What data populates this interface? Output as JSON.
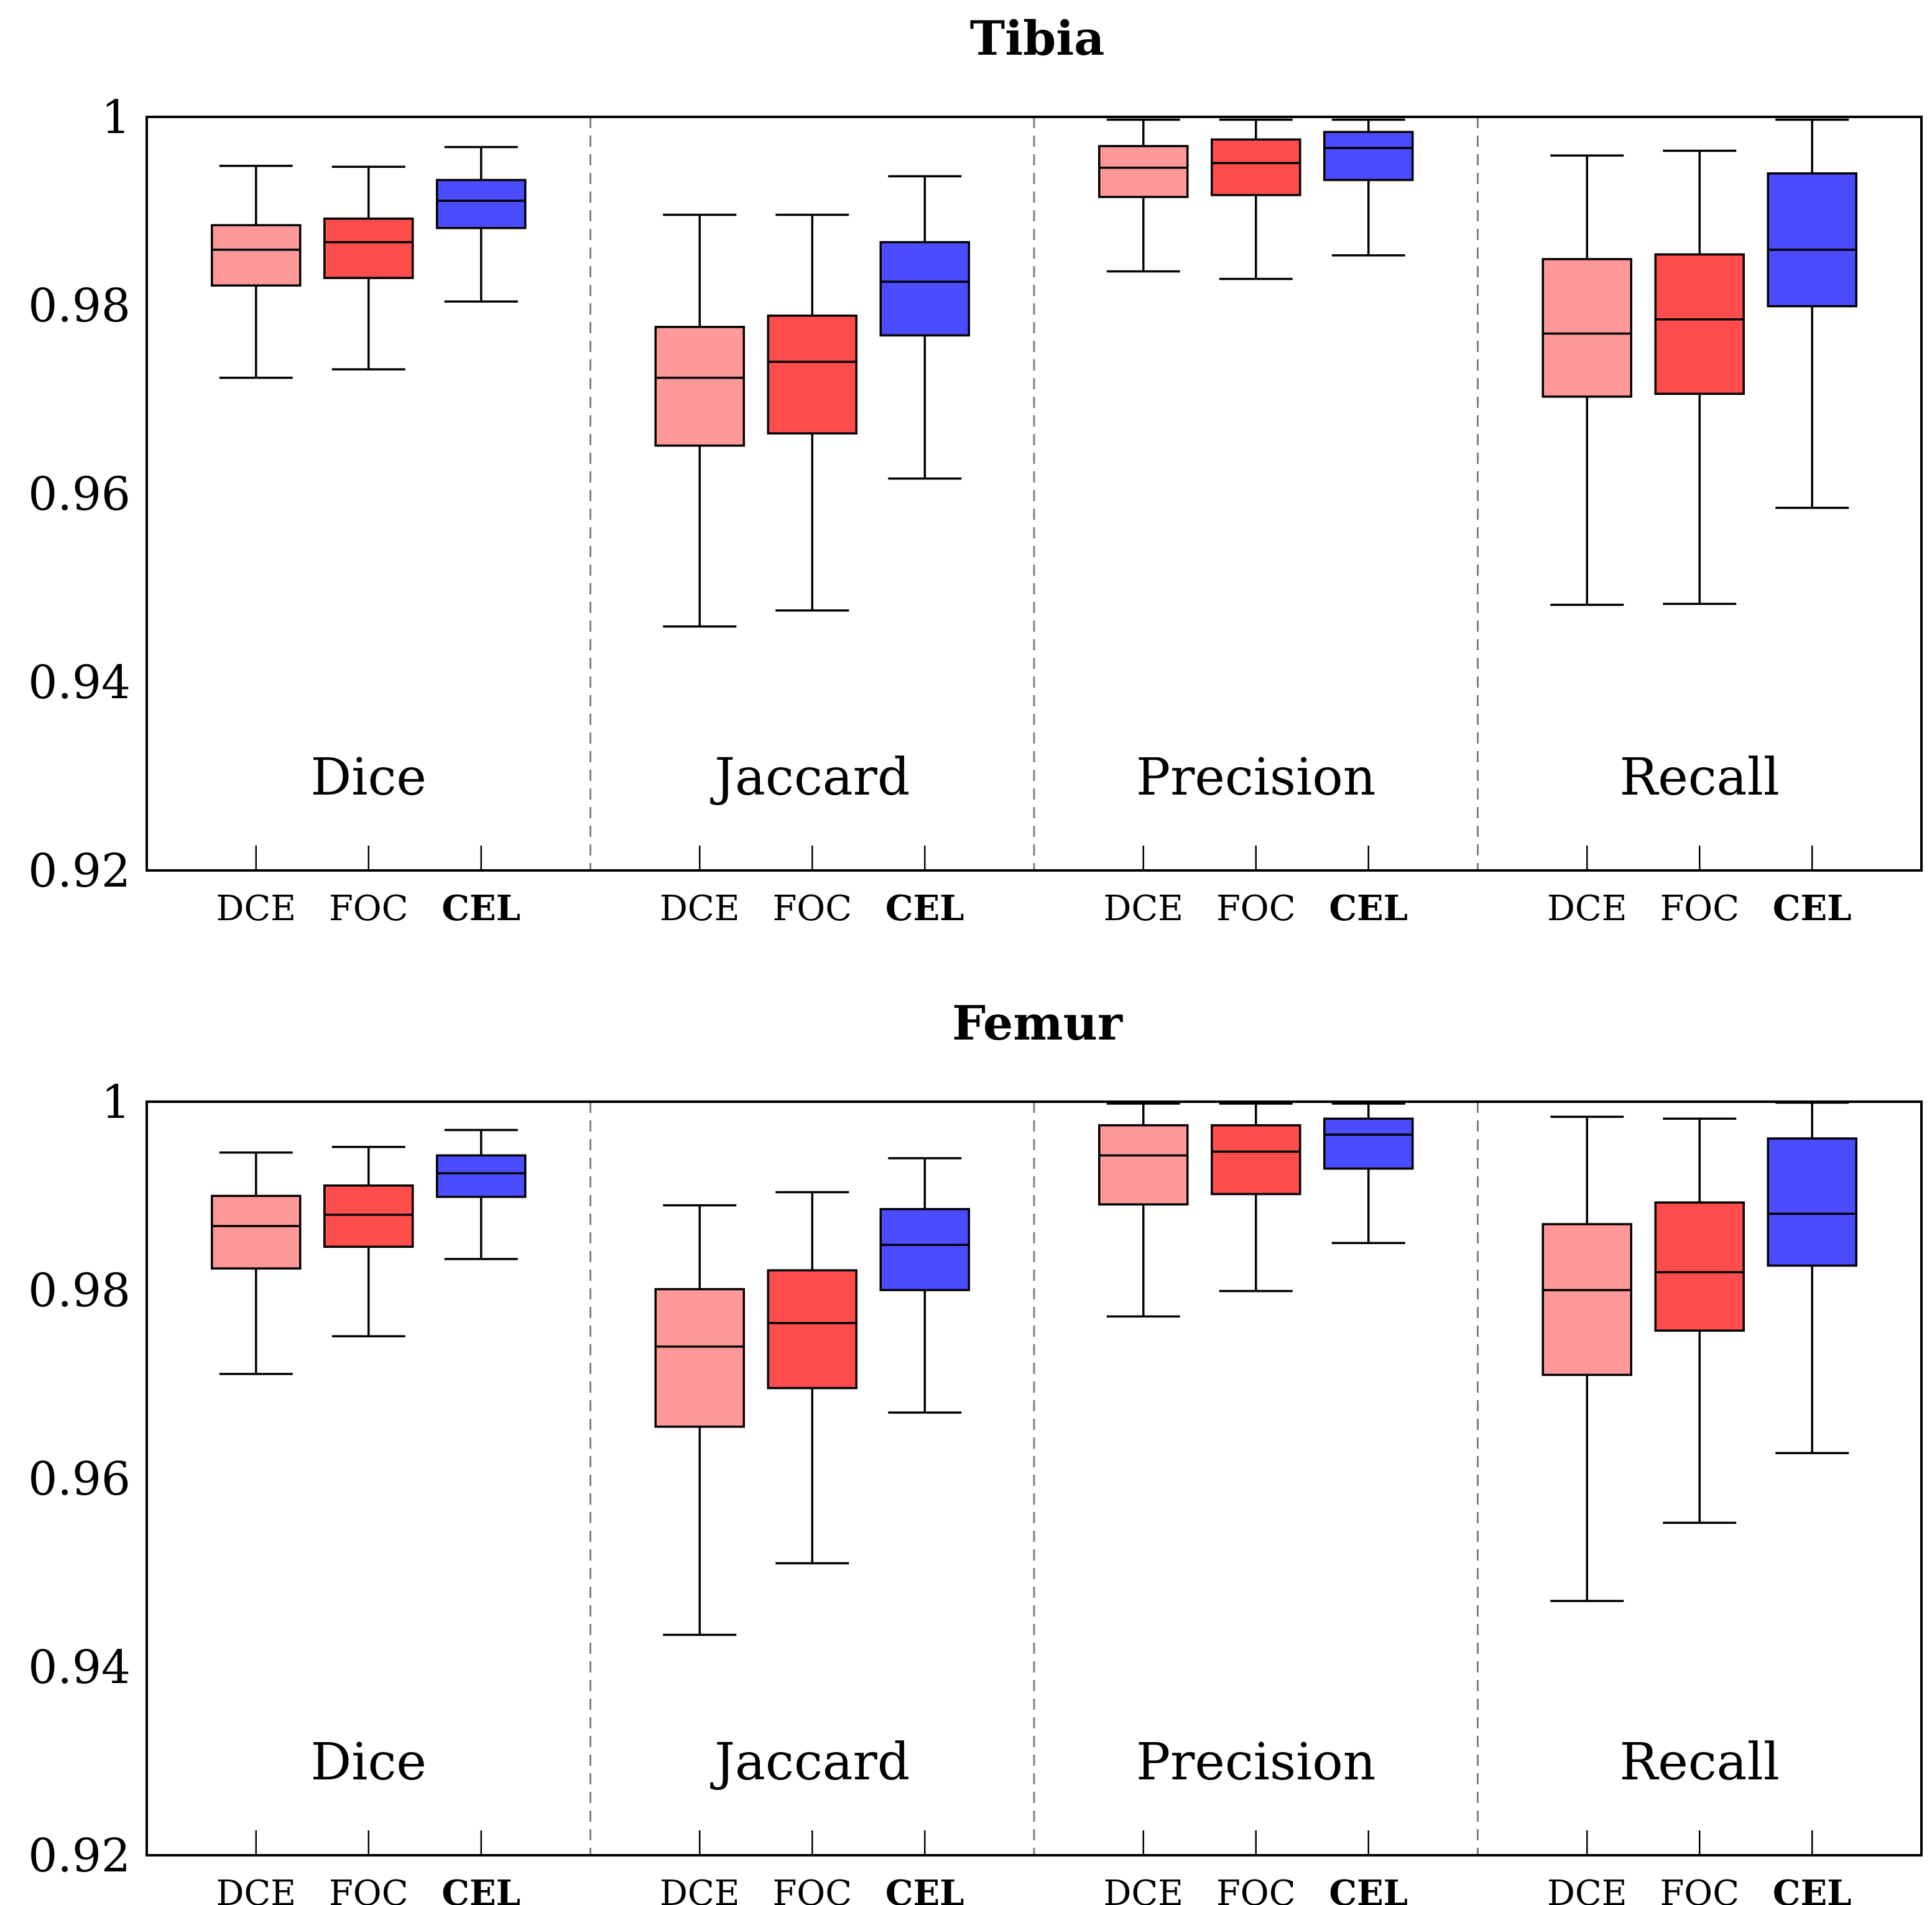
{
  "chart_data": [
    {
      "type": "boxplot",
      "title": "Tibia",
      "ylim": [
        0.92,
        1.0
      ],
      "yticks": [
        0.92,
        0.94,
        0.96,
        0.98,
        1
      ],
      "ytick_labels": [
        "0.92",
        "0.94",
        "0.96",
        "0.98",
        "1"
      ],
      "grid": false,
      "groups": [
        {
          "label": "Dice",
          "boxes": [
            {
              "method": "DCE",
              "whislo": 0.9723,
              "q1": 0.9821,
              "med": 0.9859,
              "q3": 0.9885,
              "whishi": 0.9948
            },
            {
              "method": "FOC",
              "whislo": 0.9732,
              "q1": 0.9829,
              "med": 0.9867,
              "q3": 0.9892,
              "whishi": 0.9947
            },
            {
              "method": "CEL",
              "whislo": 0.9804,
              "q1": 0.9882,
              "med": 0.9911,
              "q3": 0.9933,
              "whishi": 0.9968
            }
          ]
        },
        {
          "label": "Jaccard",
          "boxes": [
            {
              "method": "DCE",
              "whislo": 0.9459,
              "q1": 0.9651,
              "med": 0.9723,
              "q3": 0.9777,
              "whishi": 0.9896
            },
            {
              "method": "FOC",
              "whislo": 0.9476,
              "q1": 0.9664,
              "med": 0.974,
              "q3": 0.9789,
              "whishi": 0.9896
            },
            {
              "method": "CEL",
              "whislo": 0.9616,
              "q1": 0.9768,
              "med": 0.9825,
              "q3": 0.9867,
              "whishi": 0.9937
            }
          ]
        },
        {
          "label": "Precision",
          "boxes": [
            {
              "method": "DCE",
              "whislo": 0.9836,
              "q1": 0.9915,
              "med": 0.9946,
              "q3": 0.9969,
              "whishi": 0.9997
            },
            {
              "method": "FOC",
              "whislo": 0.9828,
              "q1": 0.9917,
              "med": 0.9951,
              "q3": 0.9976,
              "whishi": 0.9997
            },
            {
              "method": "CEL",
              "whislo": 0.9853,
              "q1": 0.9933,
              "med": 0.9967,
              "q3": 0.9984,
              "whishi": 0.9997
            }
          ]
        },
        {
          "label": "Recall",
          "boxes": [
            {
              "method": "DCE",
              "whislo": 0.9482,
              "q1": 0.9703,
              "med": 0.977,
              "q3": 0.9849,
              "whishi": 0.9959
            },
            {
              "method": "FOC",
              "whislo": 0.9483,
              "q1": 0.9706,
              "med": 0.9785,
              "q3": 0.9854,
              "whishi": 0.9964
            },
            {
              "method": "CEL",
              "whislo": 0.9585,
              "q1": 0.9799,
              "med": 0.9859,
              "q3": 0.994,
              "whishi": 0.9997
            }
          ]
        }
      ]
    },
    {
      "type": "boxplot",
      "title": "Femur",
      "ylim": [
        0.92,
        1.0
      ],
      "yticks": [
        0.92,
        0.94,
        0.96,
        0.98,
        1
      ],
      "ytick_labels": [
        "0.92",
        "0.94",
        "0.96",
        "0.98",
        "1"
      ],
      "grid": false,
      "groups": [
        {
          "label": "Dice",
          "boxes": [
            {
              "method": "DCE",
              "whislo": 0.9711,
              "q1": 0.9823,
              "med": 0.9868,
              "q3": 0.99,
              "whishi": 0.9946
            },
            {
              "method": "FOC",
              "whislo": 0.9751,
              "q1": 0.9846,
              "med": 0.988,
              "q3": 0.9911,
              "whishi": 0.9952
            },
            {
              "method": "CEL",
              "whislo": 0.9833,
              "q1": 0.9899,
              "med": 0.9924,
              "q3": 0.9943,
              "whishi": 0.997
            }
          ]
        },
        {
          "label": "Jaccard",
          "boxes": [
            {
              "method": "DCE",
              "whislo": 0.9434,
              "q1": 0.9655,
              "med": 0.974,
              "q3": 0.9801,
              "whishi": 0.989
            },
            {
              "method": "FOC",
              "whislo": 0.951,
              "q1": 0.9696,
              "med": 0.9765,
              "q3": 0.9821,
              "whishi": 0.9904
            },
            {
              "method": "CEL",
              "whislo": 0.967,
              "q1": 0.98,
              "med": 0.9848,
              "q3": 0.9886,
              "whishi": 0.994
            }
          ]
        },
        {
          "label": "Precision",
          "boxes": [
            {
              "method": "DCE",
              "whislo": 0.9772,
              "q1": 0.9891,
              "med": 0.9943,
              "q3": 0.9975,
              "whishi": 0.9998
            },
            {
              "method": "FOC",
              "whislo": 0.9799,
              "q1": 0.9902,
              "med": 0.9947,
              "q3": 0.9975,
              "whishi": 0.9998
            },
            {
              "method": "CEL",
              "whislo": 0.985,
              "q1": 0.9929,
              "med": 0.9965,
              "q3": 0.9982,
              "whishi": 0.9998
            }
          ]
        },
        {
          "label": "Recall",
          "boxes": [
            {
              "method": "DCE",
              "whislo": 0.947,
              "q1": 0.971,
              "med": 0.98,
              "q3": 0.987,
              "whishi": 0.9984
            },
            {
              "method": "FOC",
              "whislo": 0.9553,
              "q1": 0.9757,
              "med": 0.9819,
              "q3": 0.9893,
              "whishi": 0.9982
            },
            {
              "method": "CEL",
              "whislo": 0.9627,
              "q1": 0.9826,
              "med": 0.9881,
              "q3": 0.9961,
              "whishi": 0.9999
            }
          ]
        }
      ]
    }
  ],
  "methods": [
    {
      "label": "DCE",
      "bold": false,
      "color": "#ff9999"
    },
    {
      "label": "FOC",
      "bold": false,
      "color": "#ff4c4c"
    },
    {
      "label": "CEL",
      "bold": true,
      "color": "#4c4cff"
    }
  ]
}
